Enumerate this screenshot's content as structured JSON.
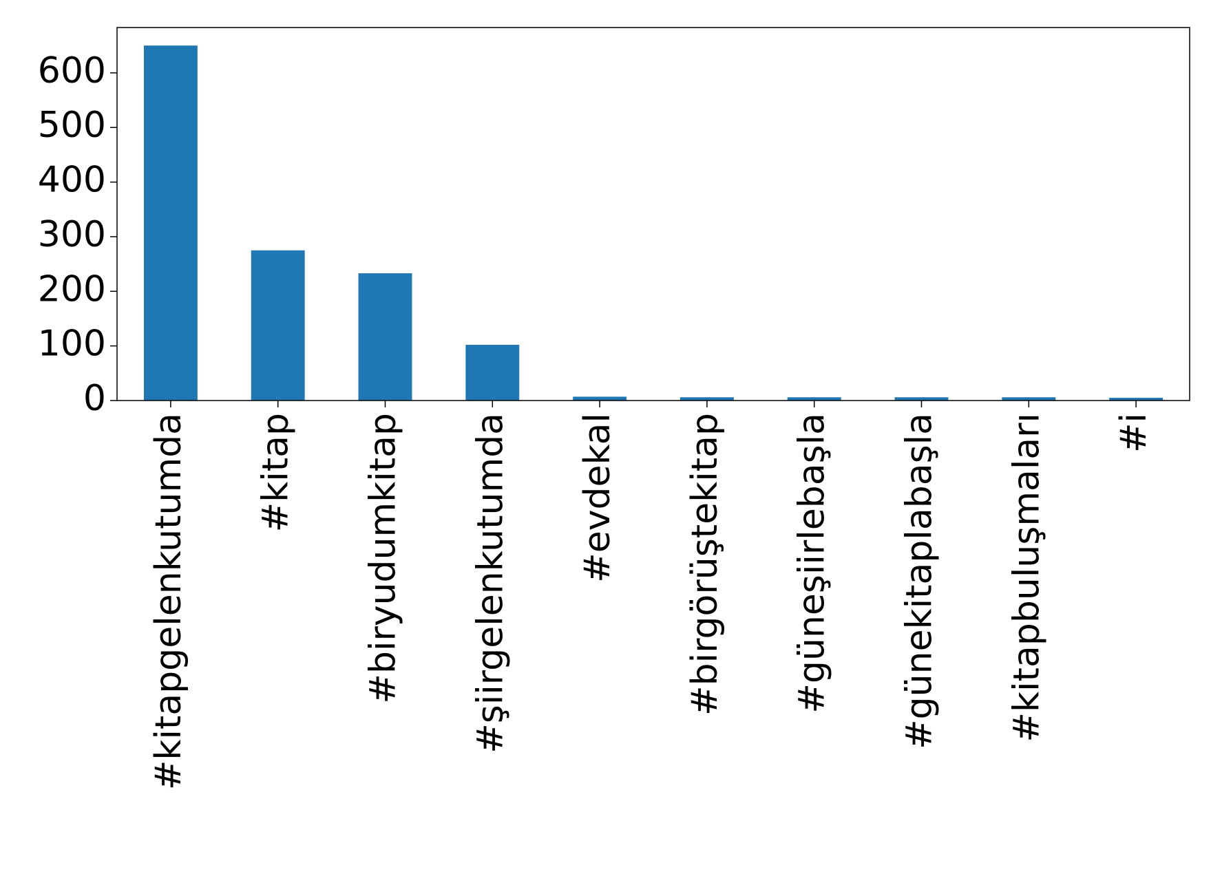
{
  "chart_data": {
    "type": "bar",
    "categories": [
      "#kitapgelenkutumda",
      "#kitap",
      "#biryudumkitap",
      "#şiirgelenkutumda",
      "#evdekal",
      "#birgörüştekitap",
      "#güneşiirlebaşla",
      "#günekitaplabaşla",
      "#kitapbuluşmaları",
      "#i"
    ],
    "values": [
      650,
      275,
      233,
      102,
      7,
      6,
      6,
      6,
      6,
      5
    ],
    "color": "#1f77b4",
    "ylim": [
      0,
      683
    ],
    "yticks": [
      0,
      100,
      200,
      300,
      400,
      500,
      600
    ],
    "grid": false
  }
}
